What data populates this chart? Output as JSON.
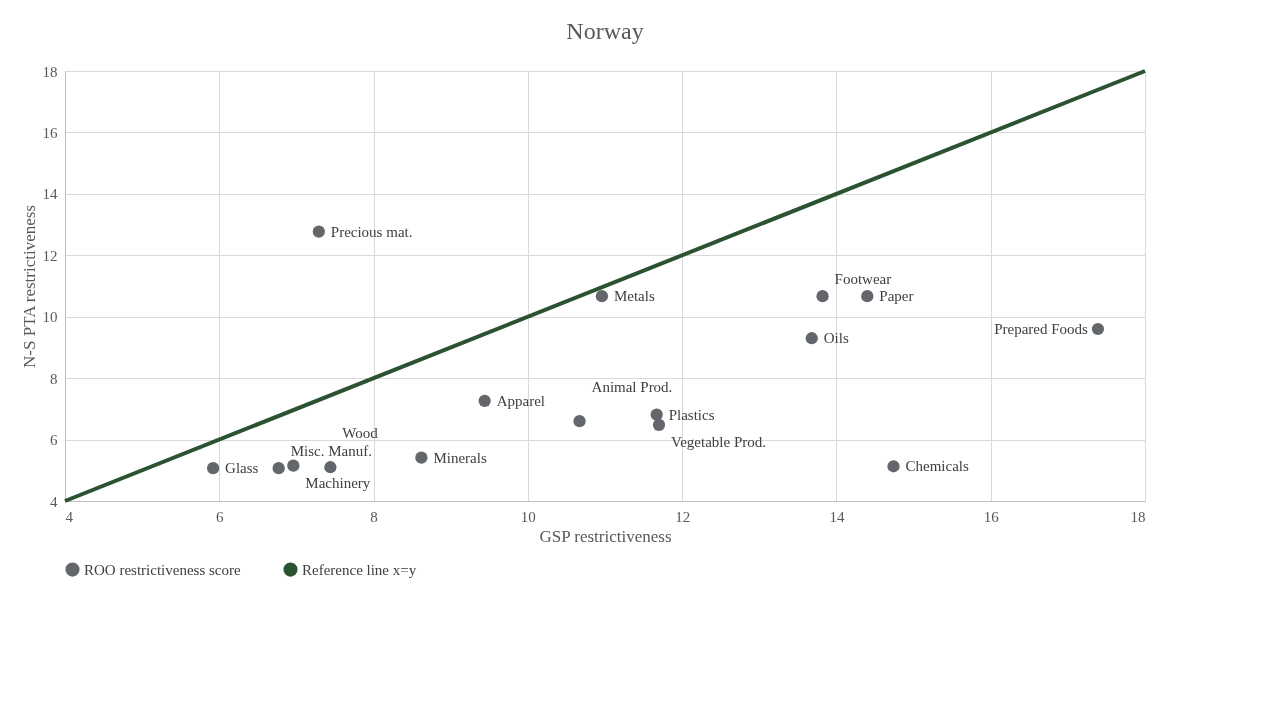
{
  "chart_data": {
    "type": "scatter",
    "title": "Norway",
    "xlabel": "GSP restrictiveness",
    "ylabel": "N-S PTA restrictiveness",
    "xlim": [
      4,
      18
    ],
    "xticks": [
      4,
      6,
      8,
      10,
      12,
      14,
      16,
      18
    ],
    "ylim": [
      4,
      18
    ],
    "yticks": [
      4,
      6,
      8,
      10,
      12,
      14,
      16,
      18
    ],
    "grid": true,
    "legend": "bottom",
    "series": [
      {
        "name": "ROO restrictiveness score",
        "type": "scatter",
        "marker": "circle",
        "color": "#63666a",
        "x": [
          7.29,
          5.92,
          6.77,
          6.96,
          7.44,
          8.62,
          9.44,
          10.96,
          13.82,
          14.4,
          13.68,
          17.39,
          10.67,
          11.67,
          11.7,
          14.74
        ],
        "values": [
          12.77,
          5.07,
          5.07,
          5.15,
          5.1,
          5.41,
          7.26,
          10.67,
          10.67,
          10.67,
          9.3,
          9.6,
          6.6,
          6.81,
          6.48,
          5.13
        ],
        "value_labels": [
          "Precious mat.",
          "Glass",
          "Misc. Manuf.",
          "Machinery",
          "Wood",
          "Minerals",
          "Apparel",
          "Metals",
          "Footwear",
          "Paper",
          "Oils",
          "Prepared Foods",
          "Animal Prod.",
          "Plastics",
          "Vegetable Prod.",
          "Chemicals"
        ]
      },
      {
        "name": "Reference line x=y",
        "type": "line",
        "color": "#2b5231",
        "x": [
          4,
          18
        ],
        "values": [
          4,
          18
        ]
      }
    ]
  }
}
